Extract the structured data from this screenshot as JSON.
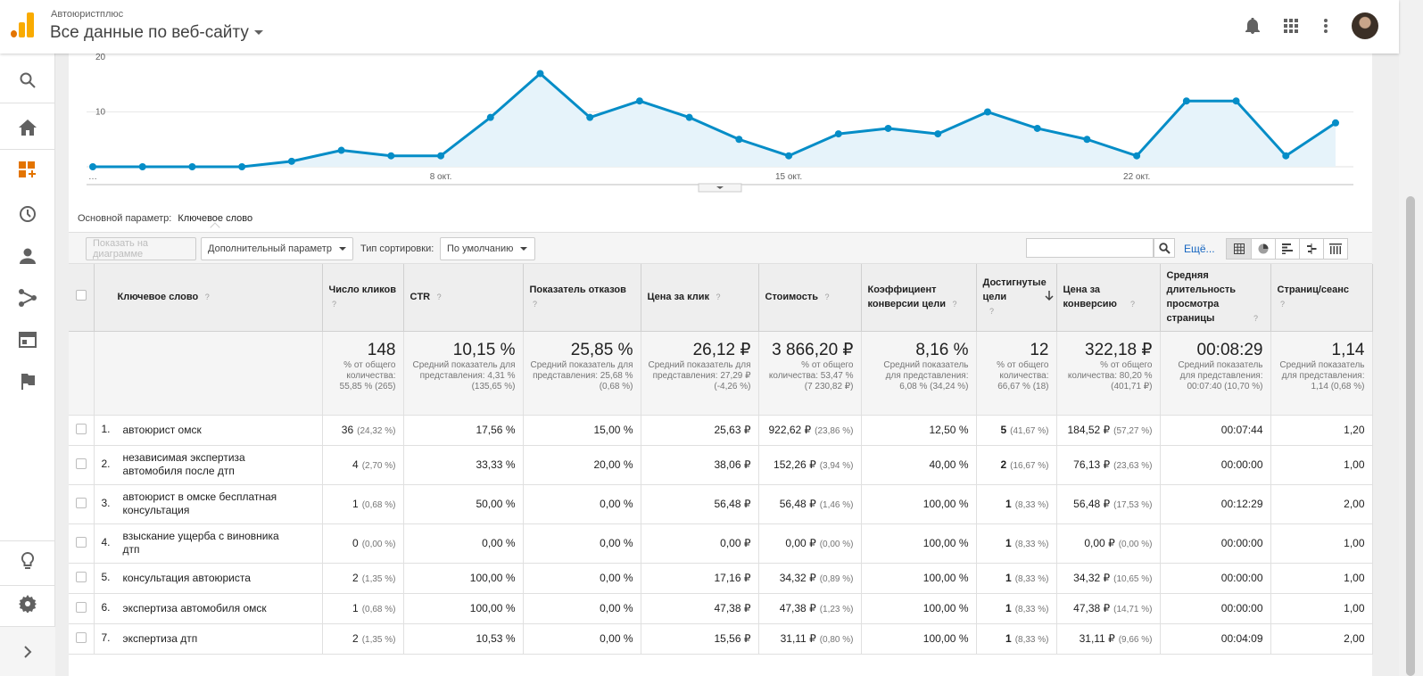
{
  "header": {
    "account": "Автоюристплюс",
    "property": "Все данные по веб-сайту"
  },
  "icons": {
    "notifications": "bell-icon",
    "apps": "grid-icon",
    "more": "more-vert-icon"
  },
  "sidebar": {
    "items": [
      "search-icon",
      "home-icon",
      "customization-icon",
      "realtime-icon",
      "audience-icon",
      "acquisition-icon",
      "behavior-icon",
      "conversions-icon"
    ],
    "bottom": [
      "discover-icon",
      "admin-icon",
      "expand-icon"
    ]
  },
  "chart_data": {
    "type": "area",
    "x_tick_labels": [
      "…",
      "8 окт.",
      "15 окт.",
      "22 окт."
    ],
    "y_tick_labels": [
      "20",
      "10"
    ],
    "ylim": [
      0,
      20
    ],
    "color": "#058dc7",
    "values": [
      0,
      0,
      0,
      0,
      1,
      3,
      2,
      2,
      9,
      17,
      9,
      12,
      9,
      5,
      2,
      6,
      7,
      6,
      10,
      7,
      5,
      2,
      12,
      12,
      2,
      8
    ]
  },
  "primary_dimension": {
    "label": "Основной параметр:",
    "value": "Ключевое слово"
  },
  "toolbar": {
    "plot_rows": "Показать на диаграмме",
    "secondary_dimension": "Дополнительный параметр",
    "sort_type_label": "Тип сортировки:",
    "sort_type_value": "По умолчанию",
    "search_value": "",
    "more": "Ещё..."
  },
  "table": {
    "columns": [
      "Ключевое слово",
      "Число кликов",
      "CTR",
      "Показатель отказов",
      "Цена за клик",
      "Стоимость",
      "Коэффициент конверсии цели",
      "Достигнутые цели",
      "Цена за конверсию",
      "Средняя длительность просмотра страницы",
      "Страниц/сеанс"
    ],
    "help": "?",
    "totals": [
      {
        "v": "148",
        "s": "% от общего количества: 55,85 % (265)"
      },
      {
        "v": "10,15 %",
        "s": "Средний показатель для представления: 4,31 % (135,65 %)"
      },
      {
        "v": "25,85 %",
        "s": "Средний показатель для представления: 25,68 % (0,68 %)"
      },
      {
        "v": "26,12 ₽",
        "s": "Средний показатель для представления: 27,29 ₽ (-4,26 %)"
      },
      {
        "v": "3 866,20 ₽",
        "s": "% от общего количества: 53,47 % (7 230,82 ₽)"
      },
      {
        "v": "8,16 %",
        "s": "Средний показатель для представления: 6,08 % (34,24 %)"
      },
      {
        "v": "12",
        "s": "% от общего количества: 66,67 % (18)"
      },
      {
        "v": "322,18 ₽",
        "s": "% от общего количества: 80,20 % (401,71 ₽)"
      },
      {
        "v": "00:08:29",
        "s": "Средний показатель для представления: 00:07:40 (10,70 %)"
      },
      {
        "v": "1,14",
        "s": "Средний показатель для представления: 1,14 (0,68 %)"
      }
    ],
    "rows": [
      {
        "n": "1.",
        "kw": "автоюрист омск",
        "clicks": "36",
        "clicks_pct": "(24,32 %)",
        "ctr": "17,56 %",
        "bounce": "15,00 %",
        "cpc": "25,63 ₽",
        "cost": "922,62 ₽",
        "cost_pct": "(23,86 %)",
        "conv": "12,50 %",
        "goals": "5",
        "goals_pct": "(41,67 %)",
        "cpa": "184,52 ₽",
        "cpa_pct": "(57,27 %)",
        "time": "00:07:44",
        "pps": "1,20"
      },
      {
        "n": "2.",
        "kw": "независимая экспертиза автомобиля после дтп",
        "clicks": "4",
        "clicks_pct": "(2,70 %)",
        "ctr": "33,33 %",
        "bounce": "20,00 %",
        "cpc": "38,06 ₽",
        "cost": "152,26 ₽",
        "cost_pct": "(3,94 %)",
        "conv": "40,00 %",
        "goals": "2",
        "goals_pct": "(16,67 %)",
        "cpa": "76,13 ₽",
        "cpa_pct": "(23,63 %)",
        "time": "00:00:00",
        "pps": "1,00"
      },
      {
        "n": "3.",
        "kw": "автоюрист в омске бесплатная консультация",
        "clicks": "1",
        "clicks_pct": "(0,68 %)",
        "ctr": "50,00 %",
        "bounce": "0,00 %",
        "cpc": "56,48 ₽",
        "cost": "56,48 ₽",
        "cost_pct": "(1,46 %)",
        "conv": "100,00 %",
        "goals": "1",
        "goals_pct": "(8,33 %)",
        "cpa": "56,48 ₽",
        "cpa_pct": "(17,53 %)",
        "time": "00:12:29",
        "pps": "2,00"
      },
      {
        "n": "4.",
        "kw": "взыскание ущерба с виновника дтп",
        "clicks": "0",
        "clicks_pct": "(0,00 %)",
        "ctr": "0,00 %",
        "bounce": "0,00 %",
        "cpc": "0,00 ₽",
        "cost": "0,00 ₽",
        "cost_pct": "(0,00 %)",
        "conv": "100,00 %",
        "goals": "1",
        "goals_pct": "(8,33 %)",
        "cpa": "0,00 ₽",
        "cpa_pct": "(0,00 %)",
        "time": "00:00:00",
        "pps": "1,00"
      },
      {
        "n": "5.",
        "kw": "консультация автоюриста",
        "clicks": "2",
        "clicks_pct": "(1,35 %)",
        "ctr": "100,00 %",
        "bounce": "0,00 %",
        "cpc": "17,16 ₽",
        "cost": "34,32 ₽",
        "cost_pct": "(0,89 %)",
        "conv": "100,00 %",
        "goals": "1",
        "goals_pct": "(8,33 %)",
        "cpa": "34,32 ₽",
        "cpa_pct": "(10,65 %)",
        "time": "00:00:00",
        "pps": "1,00"
      },
      {
        "n": "6.",
        "kw": "экспертиза автомобиля омск",
        "clicks": "1",
        "clicks_pct": "(0,68 %)",
        "ctr": "100,00 %",
        "bounce": "0,00 %",
        "cpc": "47,38 ₽",
        "cost": "47,38 ₽",
        "cost_pct": "(1,23 %)",
        "conv": "100,00 %",
        "goals": "1",
        "goals_pct": "(8,33 %)",
        "cpa": "47,38 ₽",
        "cpa_pct": "(14,71 %)",
        "time": "00:00:00",
        "pps": "1,00"
      },
      {
        "n": "7.",
        "kw": "экспертиза дтп",
        "clicks": "2",
        "clicks_pct": "(1,35 %)",
        "ctr": "10,53 %",
        "bounce": "0,00 %",
        "cpc": "15,56 ₽",
        "cost": "31,11 ₽",
        "cost_pct": "(0,80 %)",
        "conv": "100,00 %",
        "goals": "1",
        "goals_pct": "(8,33 %)",
        "cpa": "31,11 ₽",
        "cpa_pct": "(9,66 %)",
        "time": "00:04:09",
        "pps": "2,00"
      }
    ]
  }
}
